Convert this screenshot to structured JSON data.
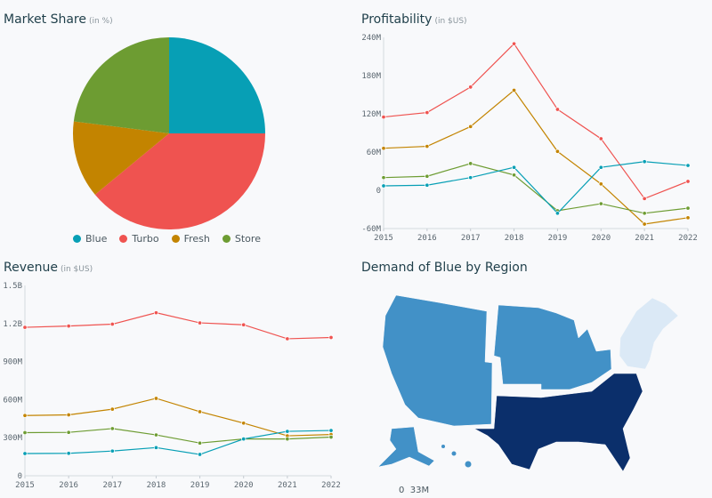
{
  "colors": {
    "Blue": "#079fb5",
    "Turbo": "#ef5350",
    "Fresh": "#c38400",
    "Store": "#6d9c32"
  },
  "chart_data": [
    {
      "type": "pie",
      "title": "Market Share",
      "unit": "(in %)",
      "categories": [
        "Blue",
        "Turbo",
        "Fresh",
        "Store"
      ],
      "values": [
        25,
        39,
        13,
        23
      ],
      "legend": "bottom"
    },
    {
      "type": "line",
      "title": "Profitability",
      "unit": "(in $US)",
      "x": [
        2015,
        2016,
        2017,
        2018,
        2019,
        2020,
        2021,
        2022
      ],
      "yticks": [
        "-60M",
        "0",
        "60M",
        "120M",
        "180M",
        "240M"
      ],
      "ylim": [
        -60,
        240
      ],
      "series": [
        {
          "name": "Turbo",
          "values": [
            115,
            122,
            162,
            230,
            127,
            81,
            -13,
            14
          ]
        },
        {
          "name": "Fresh",
          "values": [
            66,
            69,
            100,
            157,
            61,
            10,
            -53,
            -43
          ]
        },
        {
          "name": "Store",
          "values": [
            20,
            22,
            42,
            24,
            -32,
            -21,
            -36,
            -28
          ]
        },
        {
          "name": "Blue",
          "values": [
            7,
            8,
            20,
            36,
            -36,
            36,
            45,
            39
          ]
        }
      ]
    },
    {
      "type": "line",
      "title": "Revenue",
      "unit": "(in $US)",
      "x": [
        2015,
        2016,
        2017,
        2018,
        2019,
        2020,
        2021,
        2022
      ],
      "yticks": [
        "0",
        "300M",
        "600M",
        "900M",
        "1.2B",
        "1.5B"
      ],
      "ylim": [
        0,
        1500
      ],
      "series": [
        {
          "name": "Turbo",
          "values": [
            1170,
            1180,
            1195,
            1285,
            1205,
            1190,
            1080,
            1090
          ]
        },
        {
          "name": "Fresh",
          "values": [
            475,
            480,
            525,
            610,
            505,
            415,
            315,
            325
          ]
        },
        {
          "name": "Store",
          "values": [
            340,
            342,
            372,
            322,
            258,
            290,
            290,
            305
          ]
        },
        {
          "name": "Blue",
          "values": [
            175,
            177,
            195,
            222,
            168,
            290,
            350,
            357
          ]
        }
      ]
    },
    {
      "type": "choropleth",
      "title": "Demand of Blue by Region",
      "regions": [
        {
          "name": "West",
          "level": 0.7,
          "color": "#4291c7"
        },
        {
          "name": "Midwest",
          "level": 0.7,
          "color": "#4291c7"
        },
        {
          "name": "Northeast",
          "level": 0.1,
          "color": "#dbe9f6"
        },
        {
          "name": "South",
          "level": 1.0,
          "color": "#0b2f6b"
        }
      ],
      "legend": {
        "min": "0",
        "max": "33M"
      }
    }
  ]
}
